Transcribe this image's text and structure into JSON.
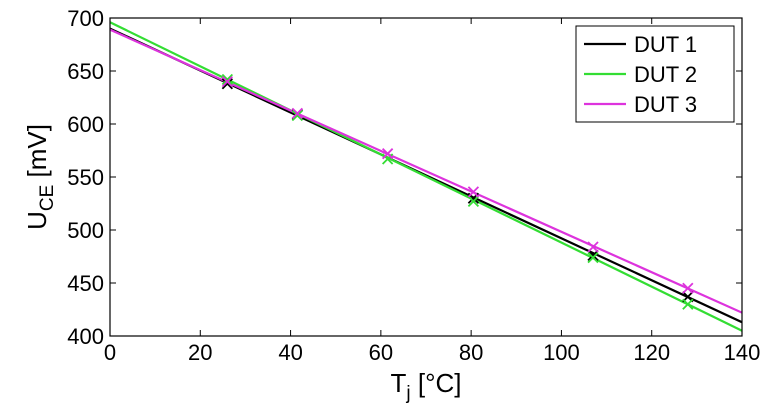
{
  "chart_data": {
    "type": "line",
    "xlabel": {
      "main": "T",
      "sub": "j",
      "unit": " [°C]"
    },
    "ylabel": {
      "main": "U",
      "sub": "CE",
      "unit": " [mV]"
    },
    "xlim": [
      0,
      140
    ],
    "ylim": [
      400,
      700
    ],
    "xticks": [
      0,
      20,
      40,
      60,
      80,
      100,
      120,
      140
    ],
    "yticks": [
      400,
      450,
      500,
      550,
      600,
      650,
      700
    ],
    "grid": false,
    "legend_position": "top-right",
    "series": [
      {
        "name": "DUT 1",
        "color": "#000000",
        "fit": {
          "x": [
            0,
            140
          ],
          "y": [
            690,
            413
          ]
        },
        "points": {
          "x": [
            26,
            41.5,
            80.5,
            107,
            128
          ],
          "y": [
            638,
            609,
            530,
            476,
            437
          ]
        }
      },
      {
        "name": "DUT 2",
        "color": "#33dd33",
        "fit": {
          "x": [
            0,
            140
          ],
          "y": [
            696,
            405
          ]
        },
        "points": {
          "x": [
            26,
            41.5,
            61.5,
            80.5,
            107,
            128
          ],
          "y": [
            642,
            608,
            567,
            527,
            474,
            430
          ]
        }
      },
      {
        "name": "DUT 3",
        "color": "#dd33dd",
        "fit": {
          "x": [
            0,
            140
          ],
          "y": [
            689,
            422
          ]
        },
        "points": {
          "x": [
            26,
            41.5,
            61.5,
            80.5,
            107,
            128
          ],
          "y": [
            640,
            610,
            572,
            536,
            484,
            445
          ]
        }
      }
    ]
  }
}
